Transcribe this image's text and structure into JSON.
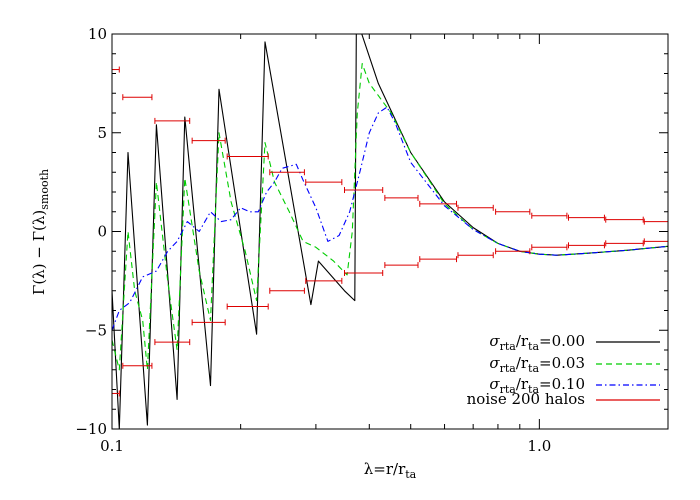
{
  "chart_data": {
    "type": "line",
    "x_scale": "log",
    "xlim": [
      0.1,
      2.0
    ],
    "ylim": [
      -10,
      10
    ],
    "xlabel": "λ=r/r",
    "xlabel_sub": "ta",
    "ylabel": "Γ(λ) − Γ(λ)",
    "ylabel_sub": "smooth",
    "x_ticks": [
      {
        "value": 0.1,
        "label": "0.1"
      },
      {
        "value": 1.0,
        "label": "1.0"
      }
    ],
    "y_ticks": [
      {
        "value": -10,
        "label": "−10"
      },
      {
        "value": -5,
        "label": "−5"
      },
      {
        "value": 0,
        "label": "0"
      },
      {
        "value": 5,
        "label": "5"
      },
      {
        "value": 10,
        "label": "10"
      }
    ],
    "legend_position": "bottom-right",
    "series": [
      {
        "name": "σ",
        "name_sub": "rta",
        "name_mid": "/r",
        "name_sub2": "ta",
        "name_tail": "=0.00",
        "color": "#000000",
        "style": "solid",
        "points": [
          [
            0.1,
            -3
          ],
          [
            0.104,
            -10
          ],
          [
            0.109,
            4
          ],
          [
            0.121,
            -9.8
          ],
          [
            0.127,
            5.4
          ],
          [
            0.142,
            -8.5
          ],
          [
            0.148,
            5.8
          ],
          [
            0.17,
            -7.8
          ],
          [
            0.178,
            7.2
          ],
          [
            0.218,
            -5.2
          ],
          [
            0.228,
            9.6
          ],
          [
            0.292,
            -3.7
          ],
          [
            0.304,
            -1.5
          ],
          [
            0.35,
            -3
          ],
          [
            0.37,
            -3.5
          ],
          [
            0.373,
            10
          ],
          [
            0.38,
            10.3
          ],
          [
            0.42,
            7.5
          ],
          [
            0.5,
            4
          ],
          [
            0.6,
            1.5
          ],
          [
            0.7,
            0.2
          ],
          [
            0.8,
            -0.6
          ],
          [
            0.9,
            -1.0
          ],
          [
            1.0,
            -1.15
          ],
          [
            1.1,
            -1.2
          ],
          [
            1.3,
            -1.1
          ],
          [
            1.6,
            -0.95
          ],
          [
            2.0,
            -0.75
          ]
        ]
      },
      {
        "name": "σ",
        "name_sub": "rta",
        "name_mid": "/r",
        "name_sub2": "ta",
        "name_tail": "=0.03",
        "color": "#00cc00",
        "style": "dashed",
        "points": [
          [
            0.1,
            -5.5
          ],
          [
            0.104,
            -7
          ],
          [
            0.109,
            0
          ],
          [
            0.113,
            -3
          ],
          [
            0.118,
            -4.5
          ],
          [
            0.121,
            -7
          ],
          [
            0.127,
            2.5
          ],
          [
            0.135,
            -2.5
          ],
          [
            0.142,
            -6
          ],
          [
            0.148,
            2.7
          ],
          [
            0.16,
            -2
          ],
          [
            0.17,
            -4.5
          ],
          [
            0.178,
            5
          ],
          [
            0.19,
            1.5
          ],
          [
            0.205,
            -1
          ],
          [
            0.218,
            -3.5
          ],
          [
            0.228,
            4.5
          ],
          [
            0.24,
            2.5
          ],
          [
            0.26,
            1
          ],
          [
            0.28,
            -0.5
          ],
          [
            0.3,
            -0.8
          ],
          [
            0.33,
            -1.5
          ],
          [
            0.355,
            -2.2
          ],
          [
            0.365,
            0
          ],
          [
            0.375,
            6
          ],
          [
            0.385,
            8.5
          ],
          [
            0.4,
            7.5
          ],
          [
            0.45,
            6
          ],
          [
            0.5,
            4
          ],
          [
            0.6,
            1.4
          ],
          [
            0.7,
            0.1
          ],
          [
            0.8,
            -0.6
          ],
          [
            0.9,
            -1.0
          ],
          [
            1.0,
            -1.15
          ],
          [
            1.1,
            -1.2
          ],
          [
            1.3,
            -1.1
          ],
          [
            1.6,
            -0.95
          ],
          [
            2.0,
            -0.75
          ]
        ]
      },
      {
        "name": "σ",
        "name_sub": "rta",
        "name_mid": "/r",
        "name_sub2": "ta",
        "name_tail": "=0.10",
        "color": "#0000ff",
        "style": "dashdot",
        "points": [
          [
            0.1,
            -5
          ],
          [
            0.104,
            -4
          ],
          [
            0.11,
            -3.6
          ],
          [
            0.118,
            -2.3
          ],
          [
            0.127,
            -2
          ],
          [
            0.135,
            -1
          ],
          [
            0.142,
            -0.5
          ],
          [
            0.15,
            0.5
          ],
          [
            0.16,
            0
          ],
          [
            0.17,
            1
          ],
          [
            0.18,
            0.5
          ],
          [
            0.19,
            0.6
          ],
          [
            0.2,
            1.2
          ],
          [
            0.21,
            1
          ],
          [
            0.22,
            1
          ],
          [
            0.23,
            2
          ],
          [
            0.24,
            2.5
          ],
          [
            0.25,
            3.2
          ],
          [
            0.26,
            3.3
          ],
          [
            0.27,
            3.4
          ],
          [
            0.28,
            2.6
          ],
          [
            0.3,
            1.2
          ],
          [
            0.32,
            -0.5
          ],
          [
            0.34,
            -0.2
          ],
          [
            0.36,
            1
          ],
          [
            0.38,
            3
          ],
          [
            0.4,
            5
          ],
          [
            0.42,
            6
          ],
          [
            0.44,
            6.3
          ],
          [
            0.46,
            5.5
          ],
          [
            0.5,
            3.5
          ],
          [
            0.6,
            1.3
          ],
          [
            0.7,
            0.1
          ],
          [
            0.8,
            -0.6
          ],
          [
            0.9,
            -1.0
          ],
          [
            1.0,
            -1.15
          ],
          [
            1.1,
            -1.2
          ],
          [
            1.3,
            -1.1
          ],
          [
            1.6,
            -0.95
          ],
          [
            2.0,
            -0.75
          ]
        ]
      }
    ],
    "noise": {
      "name": "noise 200 halos",
      "color": "#dd0000",
      "upper": [
        [
          0.1,
          0.104,
          8.2
        ],
        [
          0.106,
          0.124,
          6.8
        ],
        [
          0.126,
          0.152,
          5.6
        ],
        [
          0.154,
          0.184,
          4.6
        ],
        [
          0.186,
          0.232,
          3.8
        ],
        [
          0.234,
          0.282,
          3.0
        ],
        [
          0.284,
          0.345,
          2.5
        ],
        [
          0.35,
          0.43,
          2.1
        ],
        [
          0.435,
          0.52,
          1.7
        ],
        [
          0.525,
          0.64,
          1.4
        ],
        [
          0.645,
          0.78,
          1.2
        ],
        [
          0.79,
          0.95,
          1.0
        ],
        [
          0.96,
          1.16,
          0.8
        ],
        [
          1.17,
          1.42,
          0.7
        ],
        [
          1.43,
          1.75,
          0.6
        ],
        [
          1.76,
          2.0,
          0.5
        ]
      ],
      "lower": [
        [
          0.1,
          0.104,
          -8.2
        ],
        [
          0.106,
          0.124,
          -6.8
        ],
        [
          0.126,
          0.152,
          -5.6
        ],
        [
          0.154,
          0.184,
          -4.6
        ],
        [
          0.186,
          0.232,
          -3.8
        ],
        [
          0.234,
          0.282,
          -3.0
        ],
        [
          0.284,
          0.345,
          -2.5
        ],
        [
          0.35,
          0.43,
          -2.1
        ],
        [
          0.435,
          0.52,
          -1.7
        ],
        [
          0.525,
          0.64,
          -1.4
        ],
        [
          0.645,
          0.78,
          -1.2
        ],
        [
          0.79,
          0.95,
          -1.0
        ],
        [
          0.96,
          1.16,
          -0.8
        ],
        [
          1.17,
          1.42,
          -0.7
        ],
        [
          1.43,
          1.75,
          -0.6
        ],
        [
          1.76,
          2.0,
          -0.5
        ]
      ]
    }
  }
}
